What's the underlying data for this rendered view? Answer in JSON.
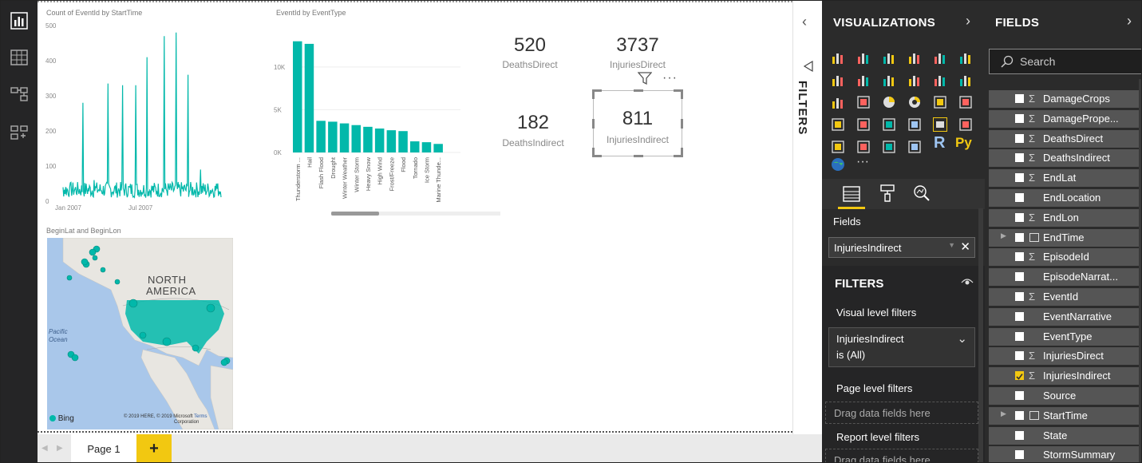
{
  "canvas": {
    "line_chart": {
      "title": "Count of EventId by StartTime",
      "y_ticks": [
        "500",
        "400",
        "300",
        "200",
        "100",
        "0"
      ],
      "x_ticks": [
        "Jan 2007",
        "Jul 2007"
      ]
    },
    "bar_chart": {
      "title": "EventId by EventType",
      "y_ticks": [
        "10K",
        "5K",
        "0K"
      ]
    },
    "map": {
      "title": "BeginLat and BeginLon",
      "region_label_1": "NORTH",
      "region_label_2": "AMERICA",
      "ocean_label_1": "Pacific",
      "ocean_label_2": "Ocean",
      "bing": "Bing",
      "copyright_1": "© 2019 HERE, © 2019 Microsoft",
      "terms": "Terms",
      "copyright_2": "Corporation"
    },
    "cards": [
      {
        "value": "520",
        "label": "DeathsDirect"
      },
      {
        "value": "3737",
        "label": "InjuriesDirect"
      },
      {
        "value": "182",
        "label": "DeathsIndirect"
      },
      {
        "value": "811",
        "label": "InjuriesIndirect"
      }
    ],
    "more_options": "···"
  },
  "chart_data": [
    {
      "type": "bar",
      "title": "EventId by EventType",
      "categories": [
        "Thunderstorm ...",
        "Hail",
        "Flash Flood",
        "Drought",
        "Winter Weather",
        "Winter Storm",
        "Heavy Snow",
        "High Wind",
        "Frost/Freeze",
        "Flood",
        "Tornado",
        "Ice Storm",
        "Marine Thunde..."
      ],
      "values": [
        13000,
        12700,
        3700,
        3600,
        3400,
        3200,
        3000,
        2800,
        2600,
        2500,
        1300,
        1200,
        1000
      ],
      "ylim": [
        0,
        14000
      ]
    },
    {
      "type": "line",
      "title": "Count of EventId by StartTime",
      "x": [
        "2007-01",
        "2007-02",
        "2007-03",
        "2007-04",
        "2007-05",
        "2007-06",
        "2007-07",
        "2007-08",
        "2007-09",
        "2007-10",
        "2007-11",
        "2007-12"
      ],
      "values": [
        40,
        280,
        60,
        335,
        330,
        330,
        410,
        470,
        480,
        360,
        90,
        50
      ],
      "ylim": [
        0,
        500
      ]
    }
  ],
  "tabs": {
    "page1": "Page 1",
    "add": "+"
  },
  "filter_strip": {
    "label": "FILTERS"
  },
  "visualizations": {
    "title": "VISUALIZATIONS",
    "fields_label": "Fields",
    "fields_value": "InjuriesIndirect",
    "filters_title": "FILTERS",
    "visual_level": "Visual level filters",
    "filter_card_line1": "InjuriesIndirect",
    "filter_card_line2": "is (All)",
    "page_level": "Page level filters",
    "drag_here": "Drag data fields here",
    "report_level": "Report level filters",
    "drag_here_2": "Drag data fields here",
    "r_label": "R",
    "py_label": "Py",
    "more": "···"
  },
  "fields": {
    "title": "FIELDS",
    "search_placeholder": "Search",
    "items": [
      {
        "name": "DamageCrops",
        "sigma": "Σ"
      },
      {
        "name": "DamagePrope...",
        "sigma": "Σ"
      },
      {
        "name": "DeathsDirect",
        "sigma": "Σ"
      },
      {
        "name": "DeathsIndirect",
        "sigma": "Σ"
      },
      {
        "name": "EndLat",
        "sigma": "Σ"
      },
      {
        "name": "EndLocation",
        "sigma": ""
      },
      {
        "name": "EndLon",
        "sigma": "Σ"
      },
      {
        "name": "EndTime",
        "sigma": ""
      },
      {
        "name": "EpisodeId",
        "sigma": "Σ"
      },
      {
        "name": "EpisodeNarrat...",
        "sigma": ""
      },
      {
        "name": "EventId",
        "sigma": "Σ"
      },
      {
        "name": "EventNarrative",
        "sigma": ""
      },
      {
        "name": "EventType",
        "sigma": ""
      },
      {
        "name": "InjuriesDirect",
        "sigma": "Σ"
      },
      {
        "name": "InjuriesIndirect",
        "sigma": "Σ"
      },
      {
        "name": "Source",
        "sigma": ""
      },
      {
        "name": "StartTime",
        "sigma": ""
      },
      {
        "name": "State",
        "sigma": ""
      },
      {
        "name": "StormSummary",
        "sigma": ""
      }
    ]
  },
  "colors": {
    "accent": "#01b8aa",
    "brand_yellow": "#f2c811",
    "pane_bg": "#2b2b2b"
  }
}
